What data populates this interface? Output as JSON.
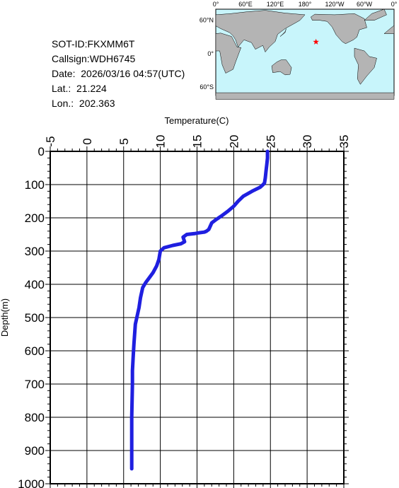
{
  "info": {
    "sot_id": "SOT-ID:FKXMM6T",
    "callsign": "Callsign:WDH6745",
    "date": "Date:  2026/03/16 04:57(UTC)",
    "lat": "Lat.:  21.224",
    "lon": "Lon.:  202.363"
  },
  "map": {
    "lon_labels": [
      "0°",
      "60°E",
      "120°E",
      "180°",
      "120°W",
      "60°W",
      "0°"
    ],
    "lat_labels": [
      "60°N",
      "0°",
      "60°S"
    ],
    "marker": {
      "lat": 21.224,
      "lon": 202.363
    },
    "colors": {
      "ocean": "#c8f5fb",
      "land": "#b4b4b4",
      "marker": "#ff0000"
    }
  },
  "chart_data": {
    "type": "line",
    "xlabel": "Temperature(C)",
    "ylabel": "Depth(m)",
    "xlim": [
      -5,
      35
    ],
    "ylim": [
      0,
      1000
    ],
    "y_inverted": true,
    "x_ticks": [
      -5,
      0,
      5,
      10,
      15,
      20,
      25,
      30,
      35
    ],
    "y_ticks": [
      0,
      100,
      200,
      300,
      400,
      500,
      600,
      700,
      800,
      900,
      1000
    ],
    "grid": true,
    "line_color": "#1f1fe0",
    "series": [
      {
        "x": [
          24.6,
          24.6,
          24.5,
          24.4,
          24.3,
          24.2,
          24.0,
          23.6,
          22.5,
          21.3,
          20.6,
          20.0,
          19.2,
          18.3,
          17.6,
          17.0,
          16.8,
          16.6,
          16.3,
          16.0,
          15.3,
          14.8,
          13.6,
          13.1,
          13.3,
          12.8,
          11.7,
          10.5,
          10.0,
          9.8,
          9.5,
          9.0,
          8.5,
          8.0,
          7.6,
          7.3,
          7.1,
          6.8,
          6.6,
          6.5,
          6.4,
          6.3,
          6.2,
          6.2,
          6.1,
          6.1,
          6.1
        ],
        "y": [
          0,
          20,
          40,
          60,
          80,
          95,
          100,
          108,
          120,
          135,
          150,
          165,
          180,
          195,
          205,
          215,
          225,
          235,
          240,
          243,
          245,
          247,
          250,
          258,
          272,
          278,
          283,
          290,
          300,
          325,
          345,
          365,
          380,
          395,
          410,
          440,
          470,
          500,
          520,
          550,
          580,
          620,
          660,
          700,
          800,
          900,
          955
        ]
      }
    ]
  }
}
